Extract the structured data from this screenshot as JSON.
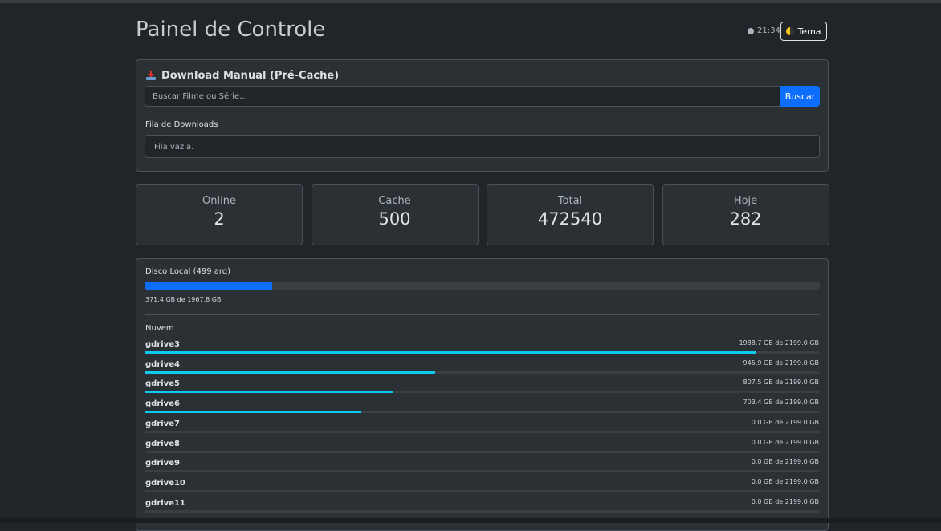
{
  "header": {
    "title": "Painel de Controle",
    "clock": "21:34",
    "theme_button": "Tema"
  },
  "download": {
    "title": "Download Manual (Pré-Cache)",
    "search_placeholder": "Buscar Filme ou Série...",
    "search_button": "Buscar",
    "queue_title": "Fila de Downloads",
    "queue_empty": "Fila vazia."
  },
  "stats": [
    {
      "label": "Online",
      "value": 2
    },
    {
      "label": "Cache",
      "value": 500
    },
    {
      "label": "Total",
      "value": 472540
    },
    {
      "label": "Hoje",
      "value": 282
    }
  ],
  "storage": {
    "local": {
      "label": "Disco Local (499 arq)",
      "used": 371.4,
      "total": 1967.8,
      "usage_label": "371.4 GB de 1967.8 GB"
    },
    "cloud_title": "Nuvem",
    "drives": [
      {
        "name": "gdrive3",
        "used": 1988.7,
        "total": 2199.0,
        "usage_label": "1988.7 GB de 2199.0 GB"
      },
      {
        "name": "gdrive4",
        "used": 945.9,
        "total": 2199.0,
        "usage_label": "945.9 GB de 2199.0 GB"
      },
      {
        "name": "gdrive5",
        "used": 807.5,
        "total": 2199.0,
        "usage_label": "807.5 GB de 2199.0 GB"
      },
      {
        "name": "gdrive6",
        "used": 703.4,
        "total": 2199.0,
        "usage_label": "703.4 GB de 2199.0 GB"
      },
      {
        "name": "gdrive7",
        "used": 0,
        "total": 2199.0,
        "usage_label": "0.0 GB de 2199.0 GB"
      },
      {
        "name": "gdrive8",
        "used": 0,
        "total": 2199.0,
        "usage_label": "0.0 GB de 2199.0 GB"
      },
      {
        "name": "gdrive9",
        "used": 0,
        "total": 2199.0,
        "usage_label": "0.0 GB de 2199.0 GB"
      },
      {
        "name": "gdrive10",
        "used": 0,
        "total": 2199.0,
        "usage_label": "0.0 GB de 2199.0 GB"
      },
      {
        "name": "gdrive11",
        "used": 0,
        "total": 2199.0,
        "usage_label": "0.0 GB de 2199.0 GB"
      }
    ]
  }
}
